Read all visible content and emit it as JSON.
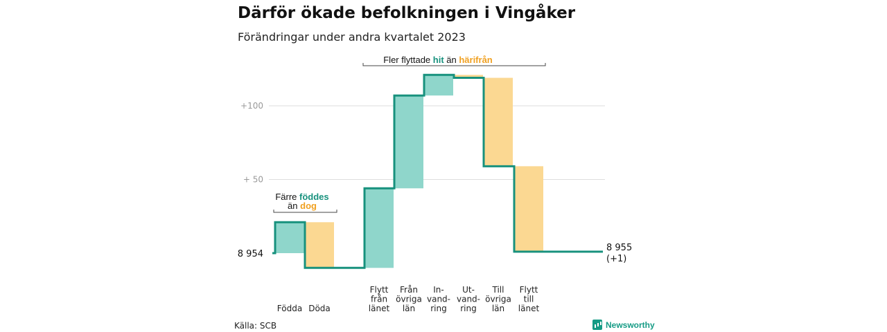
{
  "header": {
    "title": "Därför ökade befolkningen i Vingåker",
    "subtitle": "Förändringar under andra kvartalet 2023"
  },
  "colors": {
    "inflow_fill": "#8fd6cb",
    "outflow_fill": "#fbd892",
    "line": "#17917d",
    "hit": "#17917d",
    "harifran": "#f0a020",
    "grid": "#dddddd",
    "axis_label": "#999999"
  },
  "chart_data": {
    "type": "waterfall",
    "unit": "persons (change from start population)",
    "start_value": 8954,
    "start_label": "8 954",
    "end_value": 8955,
    "end_label": "8 955",
    "end_change_label": "(+1)",
    "ylim": [
      -10,
      125
    ],
    "gridlines": [
      {
        "value": 50,
        "label": "+  50"
      },
      {
        "value": 100,
        "label": "+100"
      }
    ],
    "steps": [
      {
        "category": "Födda",
        "label_lines": [
          "Födda"
        ],
        "change": 21,
        "kind": "in"
      },
      {
        "category": "Döda",
        "label_lines": [
          "Döda"
        ],
        "change": -31,
        "kind": "out"
      },
      {
        "category": "Flytt från länet",
        "label_lines": [
          "Flytt",
          "från",
          "länet"
        ],
        "change": 54,
        "kind": "in"
      },
      {
        "category": "Från övriga län",
        "label_lines": [
          "Från",
          "övriga",
          "län"
        ],
        "change": 63,
        "kind": "in"
      },
      {
        "category": "Invandring",
        "label_lines": [
          "In-",
          "vand-",
          "ring"
        ],
        "change": 14,
        "kind": "in"
      },
      {
        "category": "Utvandring",
        "label_lines": [
          "Ut-",
          "vand-",
          "ring"
        ],
        "change": -2,
        "kind": "out"
      },
      {
        "category": "Till övriga län",
        "label_lines": [
          "Till",
          "övriga",
          "län"
        ],
        "change": -60,
        "kind": "out"
      },
      {
        "category": "Flytt till länet",
        "label_lines": [
          "Flytt",
          "till",
          "länet"
        ],
        "change": -58,
        "kind": "out"
      }
    ],
    "annotations": {
      "births": {
        "line1_prefix": "Färre ",
        "line1_highlight": "föddes",
        "line2_prefix": "än ",
        "line2_highlight": "dog"
      },
      "migration": {
        "prefix": "Fler flyttade ",
        "highlight_in": "hit",
        "middle": " än ",
        "highlight_out": "härifrån"
      }
    }
  },
  "footer": {
    "source": "Källa: SCB",
    "brand": "Newsworthy"
  }
}
